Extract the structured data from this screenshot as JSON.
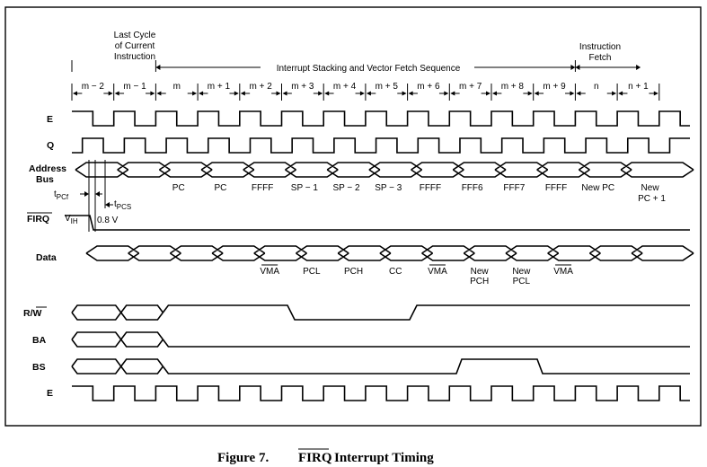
{
  "header": {
    "last_cycle": [
      "Last Cycle",
      "of Current",
      "Instruction"
    ],
    "instruction_fetch": [
      "Instruction",
      "Fetch"
    ],
    "sequence": "Interrupt Stacking and Vector Fetch Sequence"
  },
  "cycles": [
    "m − 2",
    "m − 1",
    "m",
    "m + 1",
    "m + 2",
    "m + 3",
    "m + 4",
    "m + 5",
    "m + 6",
    "m + 7",
    "m + 8",
    "m + 9",
    "n",
    "n + 1"
  ],
  "signals": {
    "e": "E",
    "q": "Q",
    "address": [
      "Address",
      "Bus"
    ],
    "firq": "FIRQ",
    "data": "Data",
    "rw": "R/W",
    "ba": "BA",
    "bs": "BS",
    "e2": "E"
  },
  "address_values": [
    "PC",
    "PC",
    "FFFF",
    "SP − 1",
    "SP − 2",
    "SP − 3",
    "FFFF",
    "FFF6",
    "FFF7",
    "FFFF",
    "New PC",
    "New"
  ],
  "address_extra": "PC + 1",
  "data_values": [
    "VMA",
    "PCL",
    "PCH",
    "CC",
    "VMA",
    "New",
    "New",
    "VMA"
  ],
  "data_extra": [
    "PCH",
    "PCL"
  ],
  "timing": {
    "t_pcf": "t",
    "t_pcf_sub": "PCf",
    "t_pcs": "t",
    "t_pcs_sub": "PCS",
    "v_ih": "V",
    "v_ih_sub": "IH",
    "threshold": "0.8 V"
  },
  "caption": {
    "figure": "Figure 7.",
    "signal": "FIRQ",
    "rest": "Interrupt Timing"
  }
}
